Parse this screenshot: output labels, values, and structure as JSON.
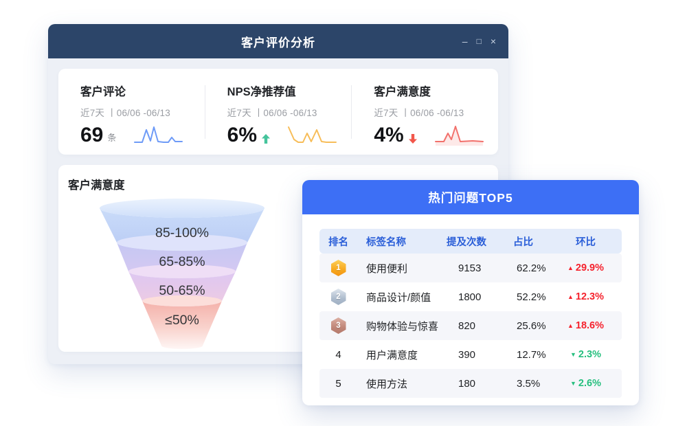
{
  "window": {
    "title": "客户评价分析",
    "controls": {
      "minimize": "–",
      "maximize": "□",
      "close": "×"
    }
  },
  "kpis": [
    {
      "title": "客户评论",
      "period": "近7天 丨06/06 -06/13",
      "value": "69",
      "unit": "条",
      "trend": "",
      "spark_color": "#6e9bf7",
      "spark": [
        [
          1,
          27
        ],
        [
          12,
          27
        ],
        [
          18,
          9
        ],
        [
          24,
          25
        ],
        [
          29,
          5
        ],
        [
          35,
          26
        ],
        [
          43,
          27
        ],
        [
          50,
          27
        ],
        [
          55,
          20
        ],
        [
          60,
          26
        ],
        [
          70,
          26
        ]
      ]
    },
    {
      "title": "NPS净推荐值",
      "period": "近7天 丨06/06 -06/13",
      "value": "6%",
      "unit": "",
      "trend": "up",
      "spark_color": "#f7bd59",
      "spark": [
        [
          1,
          5
        ],
        [
          9,
          23
        ],
        [
          15,
          27
        ],
        [
          22,
          27
        ],
        [
          28,
          14
        ],
        [
          34,
          26
        ],
        [
          42,
          9
        ],
        [
          49,
          26
        ],
        [
          56,
          27
        ],
        [
          70,
          27
        ]
      ]
    },
    {
      "title": "客户满意度",
      "period": "近7天 丨06/06 -06/13",
      "value": "4%",
      "unit": "",
      "trend": "down",
      "spark_color": "#f2716c",
      "spark": [
        [
          1,
          26
        ],
        [
          13,
          26
        ],
        [
          19,
          14
        ],
        [
          24,
          23
        ],
        [
          30,
          4
        ],
        [
          37,
          26
        ],
        [
          55,
          25
        ],
        [
          70,
          26
        ]
      ]
    }
  ],
  "funnel_panel": {
    "title": "客户满意度",
    "segments": [
      {
        "label": "85-100%"
      },
      {
        "label": "65-85%"
      },
      {
        "label": "50-65%"
      },
      {
        "label": "≤50%"
      }
    ]
  },
  "top5": {
    "title": "热门问题TOP5",
    "columns": {
      "rank": "排名",
      "label": "标签名称",
      "mentions": "提及次数",
      "share": "占比",
      "change": "环比"
    },
    "rows": [
      {
        "rank": "1",
        "medal": "gold",
        "label": "使用便利",
        "mentions": "9153",
        "share": "62.2%",
        "trend": "up",
        "change": "29.9%"
      },
      {
        "rank": "2",
        "medal": "silver",
        "label": "商品设计/颜值",
        "mentions": "1800",
        "share": "52.2%",
        "trend": "up",
        "change": "12.3%"
      },
      {
        "rank": "3",
        "medal": "bronze",
        "label": "购物体验与惊喜",
        "mentions": "820",
        "share": "25.6%",
        "trend": "up",
        "change": "18.6%"
      },
      {
        "rank": "4",
        "medal": "",
        "label": "用户满意度",
        "mentions": "390",
        "share": "12.7%",
        "trend": "down",
        "change": "2.3%"
      },
      {
        "rank": "5",
        "medal": "",
        "label": "使用方法",
        "mentions": "180",
        "share": "3.5%",
        "trend": "down",
        "change": "2.6%"
      }
    ]
  },
  "colors": {
    "titlebar": "#2c4569",
    "top5_header": "#3d6ff5",
    "table_header_bg": "#e4ecfa",
    "table_header_text": "#2a5ed8",
    "rise_red": "#f5222d",
    "drop_green": "#26bf7e",
    "kpi_up_green": "#45c49c",
    "kpi_down_red": "#f2574b"
  }
}
